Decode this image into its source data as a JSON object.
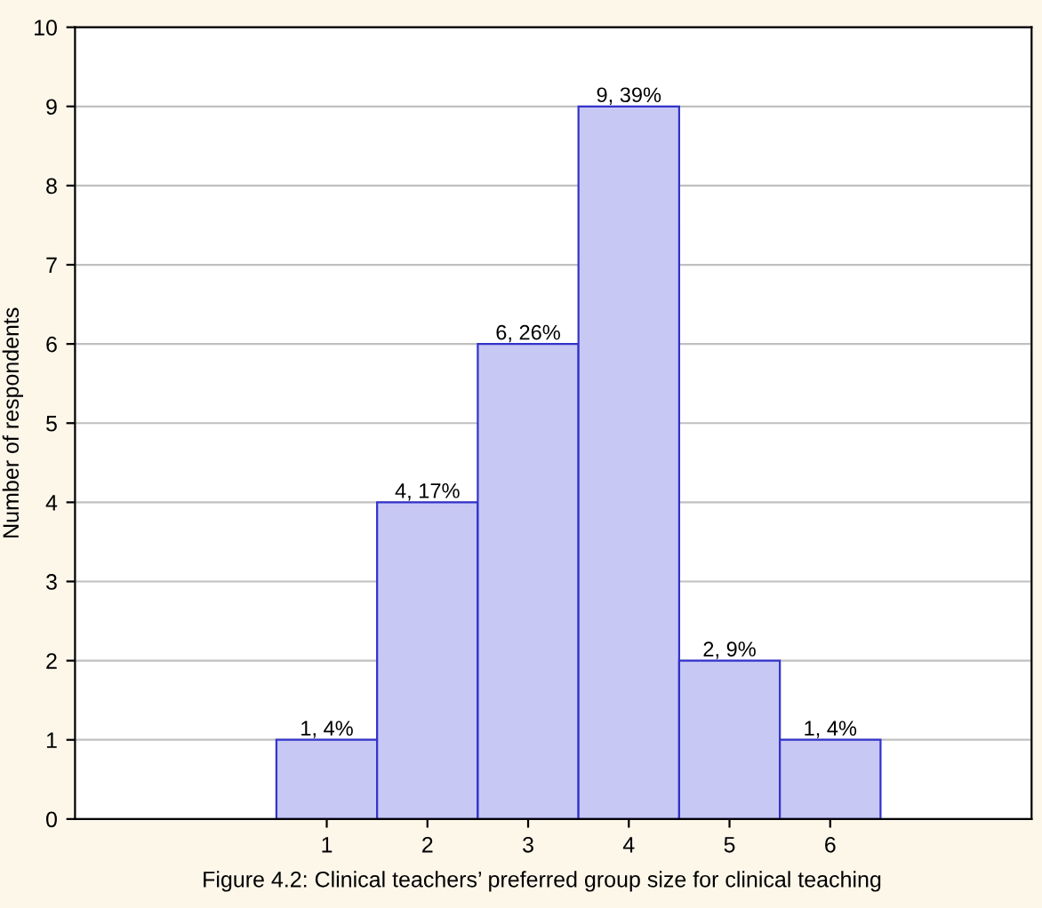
{
  "chart_data": {
    "type": "histogram",
    "ylabel": "Number of respondents",
    "bins": [
      0.5,
      1.5,
      2.5,
      3.5,
      4.5,
      5.5,
      6.5
    ],
    "values": [
      1,
      4,
      6,
      9,
      2,
      1
    ],
    "value_labels": [
      "1, 4%",
      "4, 17%",
      "6, 26%",
      "9, 39%",
      "2, 9%",
      "1, 4%"
    ],
    "color": "#c8c8f4",
    "xlim": [
      -1.5,
      8
    ],
    "xticks": [
      1,
      2,
      3,
      4,
      5,
      6
    ],
    "ylim": [
      0,
      10
    ],
    "yticks": [
      0,
      1,
      2,
      3,
      4,
      5,
      6,
      7,
      8,
      9,
      10
    ],
    "grid": "y",
    "annotations": [
      "Figure 4.2: Clinical teachers’ preferred group size for clinical teaching"
    ]
  }
}
